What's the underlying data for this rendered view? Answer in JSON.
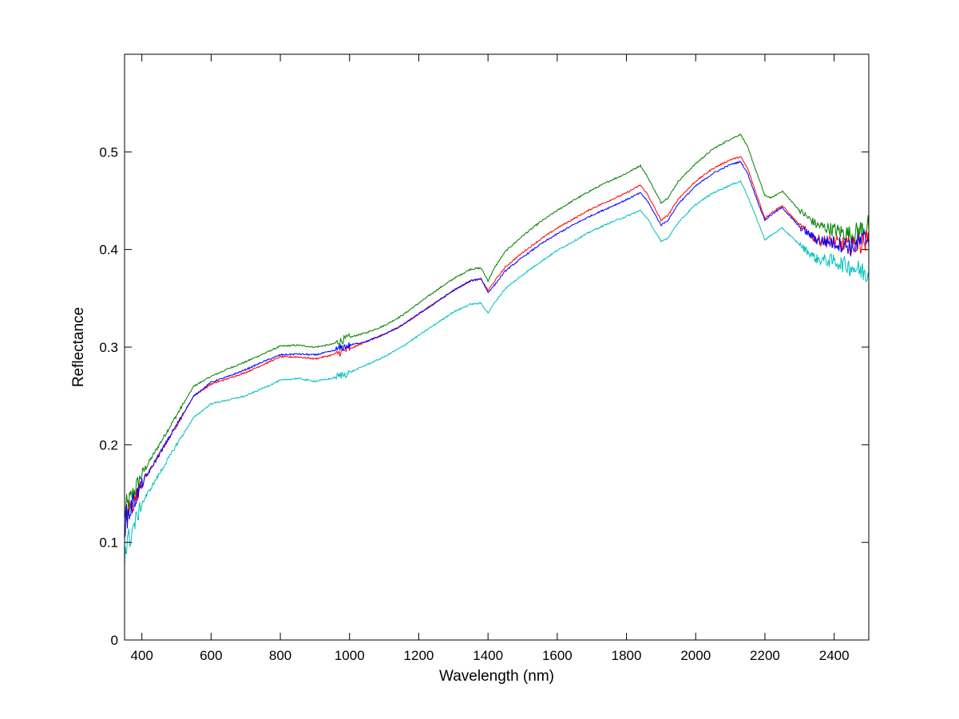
{
  "chart_data": {
    "type": "line",
    "title": "",
    "xlabel": "Wavelength (nm)",
    "ylabel": "Reflectance",
    "xlim": [
      350,
      2500
    ],
    "ylim": [
      0,
      0.6
    ],
    "xticks": [
      400,
      600,
      800,
      1000,
      1200,
      1400,
      1600,
      1800,
      2000,
      2200,
      2400
    ],
    "yticks": [
      0,
      0.1,
      0.2,
      0.3,
      0.4,
      0.5
    ],
    "xtick_labels": [
      "400",
      "600",
      "800",
      "1000",
      "1200",
      "1400",
      "1600",
      "1800",
      "2000",
      "2200",
      "2400"
    ],
    "ytick_labels": [
      "0",
      "0.1",
      "0.2",
      "0.3",
      "0.4",
      "0.5"
    ],
    "grid": false,
    "legend": "none",
    "x": [
      350,
      400,
      450,
      500,
      550,
      600,
      650,
      700,
      750,
      800,
      850,
      900,
      950,
      1000,
      1050,
      1100,
      1150,
      1200,
      1250,
      1300,
      1350,
      1380,
      1400,
      1420,
      1450,
      1500,
      1550,
      1600,
      1650,
      1700,
      1750,
      1800,
      1840,
      1860,
      1900,
      1920,
      1950,
      2000,
      2050,
      2100,
      2130,
      2150,
      2180,
      2200,
      2220,
      2250,
      2300,
      2350,
      2400,
      2450,
      2500
    ],
    "series": [
      {
        "color": "#008000",
        "values": [
          0.13,
          0.17,
          0.2,
          0.23,
          0.26,
          0.27,
          0.278,
          0.285,
          0.293,
          0.301,
          0.302,
          0.3,
          0.303,
          0.31,
          0.315,
          0.322,
          0.332,
          0.345,
          0.358,
          0.37,
          0.38,
          0.381,
          0.368,
          0.382,
          0.398,
          0.414,
          0.428,
          0.44,
          0.451,
          0.461,
          0.47,
          0.478,
          0.486,
          0.475,
          0.448,
          0.453,
          0.47,
          0.488,
          0.503,
          0.513,
          0.518,
          0.505,
          0.475,
          0.455,
          0.453,
          0.46,
          0.44,
          0.425,
          0.42,
          0.415,
          0.425
        ]
      },
      {
        "color": "#ff0000",
        "values": [
          0.12,
          0.16,
          0.19,
          0.22,
          0.25,
          0.262,
          0.268,
          0.274,
          0.282,
          0.29,
          0.29,
          0.288,
          0.292,
          0.298,
          0.306,
          0.313,
          0.322,
          0.334,
          0.346,
          0.358,
          0.368,
          0.37,
          0.358,
          0.368,
          0.382,
          0.397,
          0.41,
          0.422,
          0.432,
          0.442,
          0.45,
          0.458,
          0.466,
          0.457,
          0.43,
          0.435,
          0.452,
          0.47,
          0.483,
          0.492,
          0.495,
          0.483,
          0.452,
          0.432,
          0.438,
          0.445,
          0.425,
          0.41,
          0.407,
          0.403,
          0.41
        ]
      },
      {
        "color": "#0000ff",
        "values": [
          0.12,
          0.16,
          0.19,
          0.22,
          0.25,
          0.264,
          0.27,
          0.277,
          0.285,
          0.292,
          0.293,
          0.292,
          0.296,
          0.302,
          0.306,
          0.313,
          0.322,
          0.334,
          0.346,
          0.358,
          0.368,
          0.37,
          0.356,
          0.364,
          0.378,
          0.392,
          0.405,
          0.416,
          0.426,
          0.435,
          0.443,
          0.451,
          0.458,
          0.45,
          0.425,
          0.43,
          0.447,
          0.465,
          0.478,
          0.487,
          0.49,
          0.478,
          0.448,
          0.43,
          0.436,
          0.443,
          0.423,
          0.41,
          0.407,
          0.403,
          0.412
        ]
      },
      {
        "color": "#00bfbf",
        "values": [
          0.09,
          0.14,
          0.17,
          0.2,
          0.228,
          0.242,
          0.246,
          0.25,
          0.258,
          0.266,
          0.268,
          0.265,
          0.268,
          0.274,
          0.282,
          0.29,
          0.3,
          0.312,
          0.324,
          0.336,
          0.344,
          0.345,
          0.335,
          0.346,
          0.36,
          0.374,
          0.387,
          0.399,
          0.409,
          0.419,
          0.427,
          0.434,
          0.44,
          0.432,
          0.408,
          0.412,
          0.428,
          0.446,
          0.458,
          0.466,
          0.47,
          0.455,
          0.428,
          0.41,
          0.415,
          0.422,
          0.405,
          0.39,
          0.388,
          0.382,
          0.375
        ]
      }
    ]
  }
}
